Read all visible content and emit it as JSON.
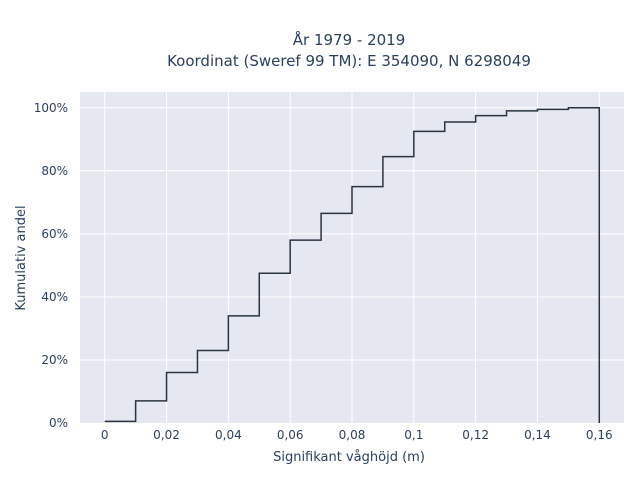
{
  "chart_data": {
    "type": "line",
    "line_shape": "step",
    "title_line1": "År 1979 - 2019",
    "title_line2": "Koordinat (Sweref 99 TM): E 354090, N 6298049",
    "xlabel": "Signifikant våghöjd (m)",
    "ylabel": "Kumulativ andel",
    "xlim": [
      -0.008,
      0.168
    ],
    "ylim": [
      0,
      1.05
    ],
    "x_ticks": [
      {
        "value": 0,
        "label": "0"
      },
      {
        "value": 0.02,
        "label": "0,02"
      },
      {
        "value": 0.04,
        "label": "0,04"
      },
      {
        "value": 0.06,
        "label": "0,06"
      },
      {
        "value": 0.08,
        "label": "0,08"
      },
      {
        "value": 0.1,
        "label": "0,1"
      },
      {
        "value": 0.12,
        "label": "0,12"
      },
      {
        "value": 0.14,
        "label": "0,14"
      },
      {
        "value": 0.16,
        "label": "0,16"
      }
    ],
    "y_ticks": [
      {
        "value": 0,
        "label": "0%"
      },
      {
        "value": 0.2,
        "label": "20%"
      },
      {
        "value": 0.4,
        "label": "40%"
      },
      {
        "value": 0.6,
        "label": "60%"
      },
      {
        "value": 0.8,
        "label": "80%"
      },
      {
        "value": 1.0,
        "label": "100%"
      }
    ],
    "x": [
      0,
      0.01,
      0.02,
      0.03,
      0.04,
      0.05,
      0.06,
      0.07,
      0.08,
      0.09,
      0.1,
      0.11,
      0.12,
      0.13,
      0.14,
      0.15,
      0.16
    ],
    "y": [
      0.005,
      0.07,
      0.16,
      0.23,
      0.34,
      0.475,
      0.58,
      0.665,
      0.75,
      0.845,
      0.925,
      0.955,
      0.975,
      0.99,
      0.995,
      1.0,
      0
    ],
    "grid": true,
    "colors": {
      "plot_bg": "#e5e8f1",
      "grid": "#ffffff",
      "line": "#2a3441",
      "text": "#2a3f5f"
    }
  }
}
